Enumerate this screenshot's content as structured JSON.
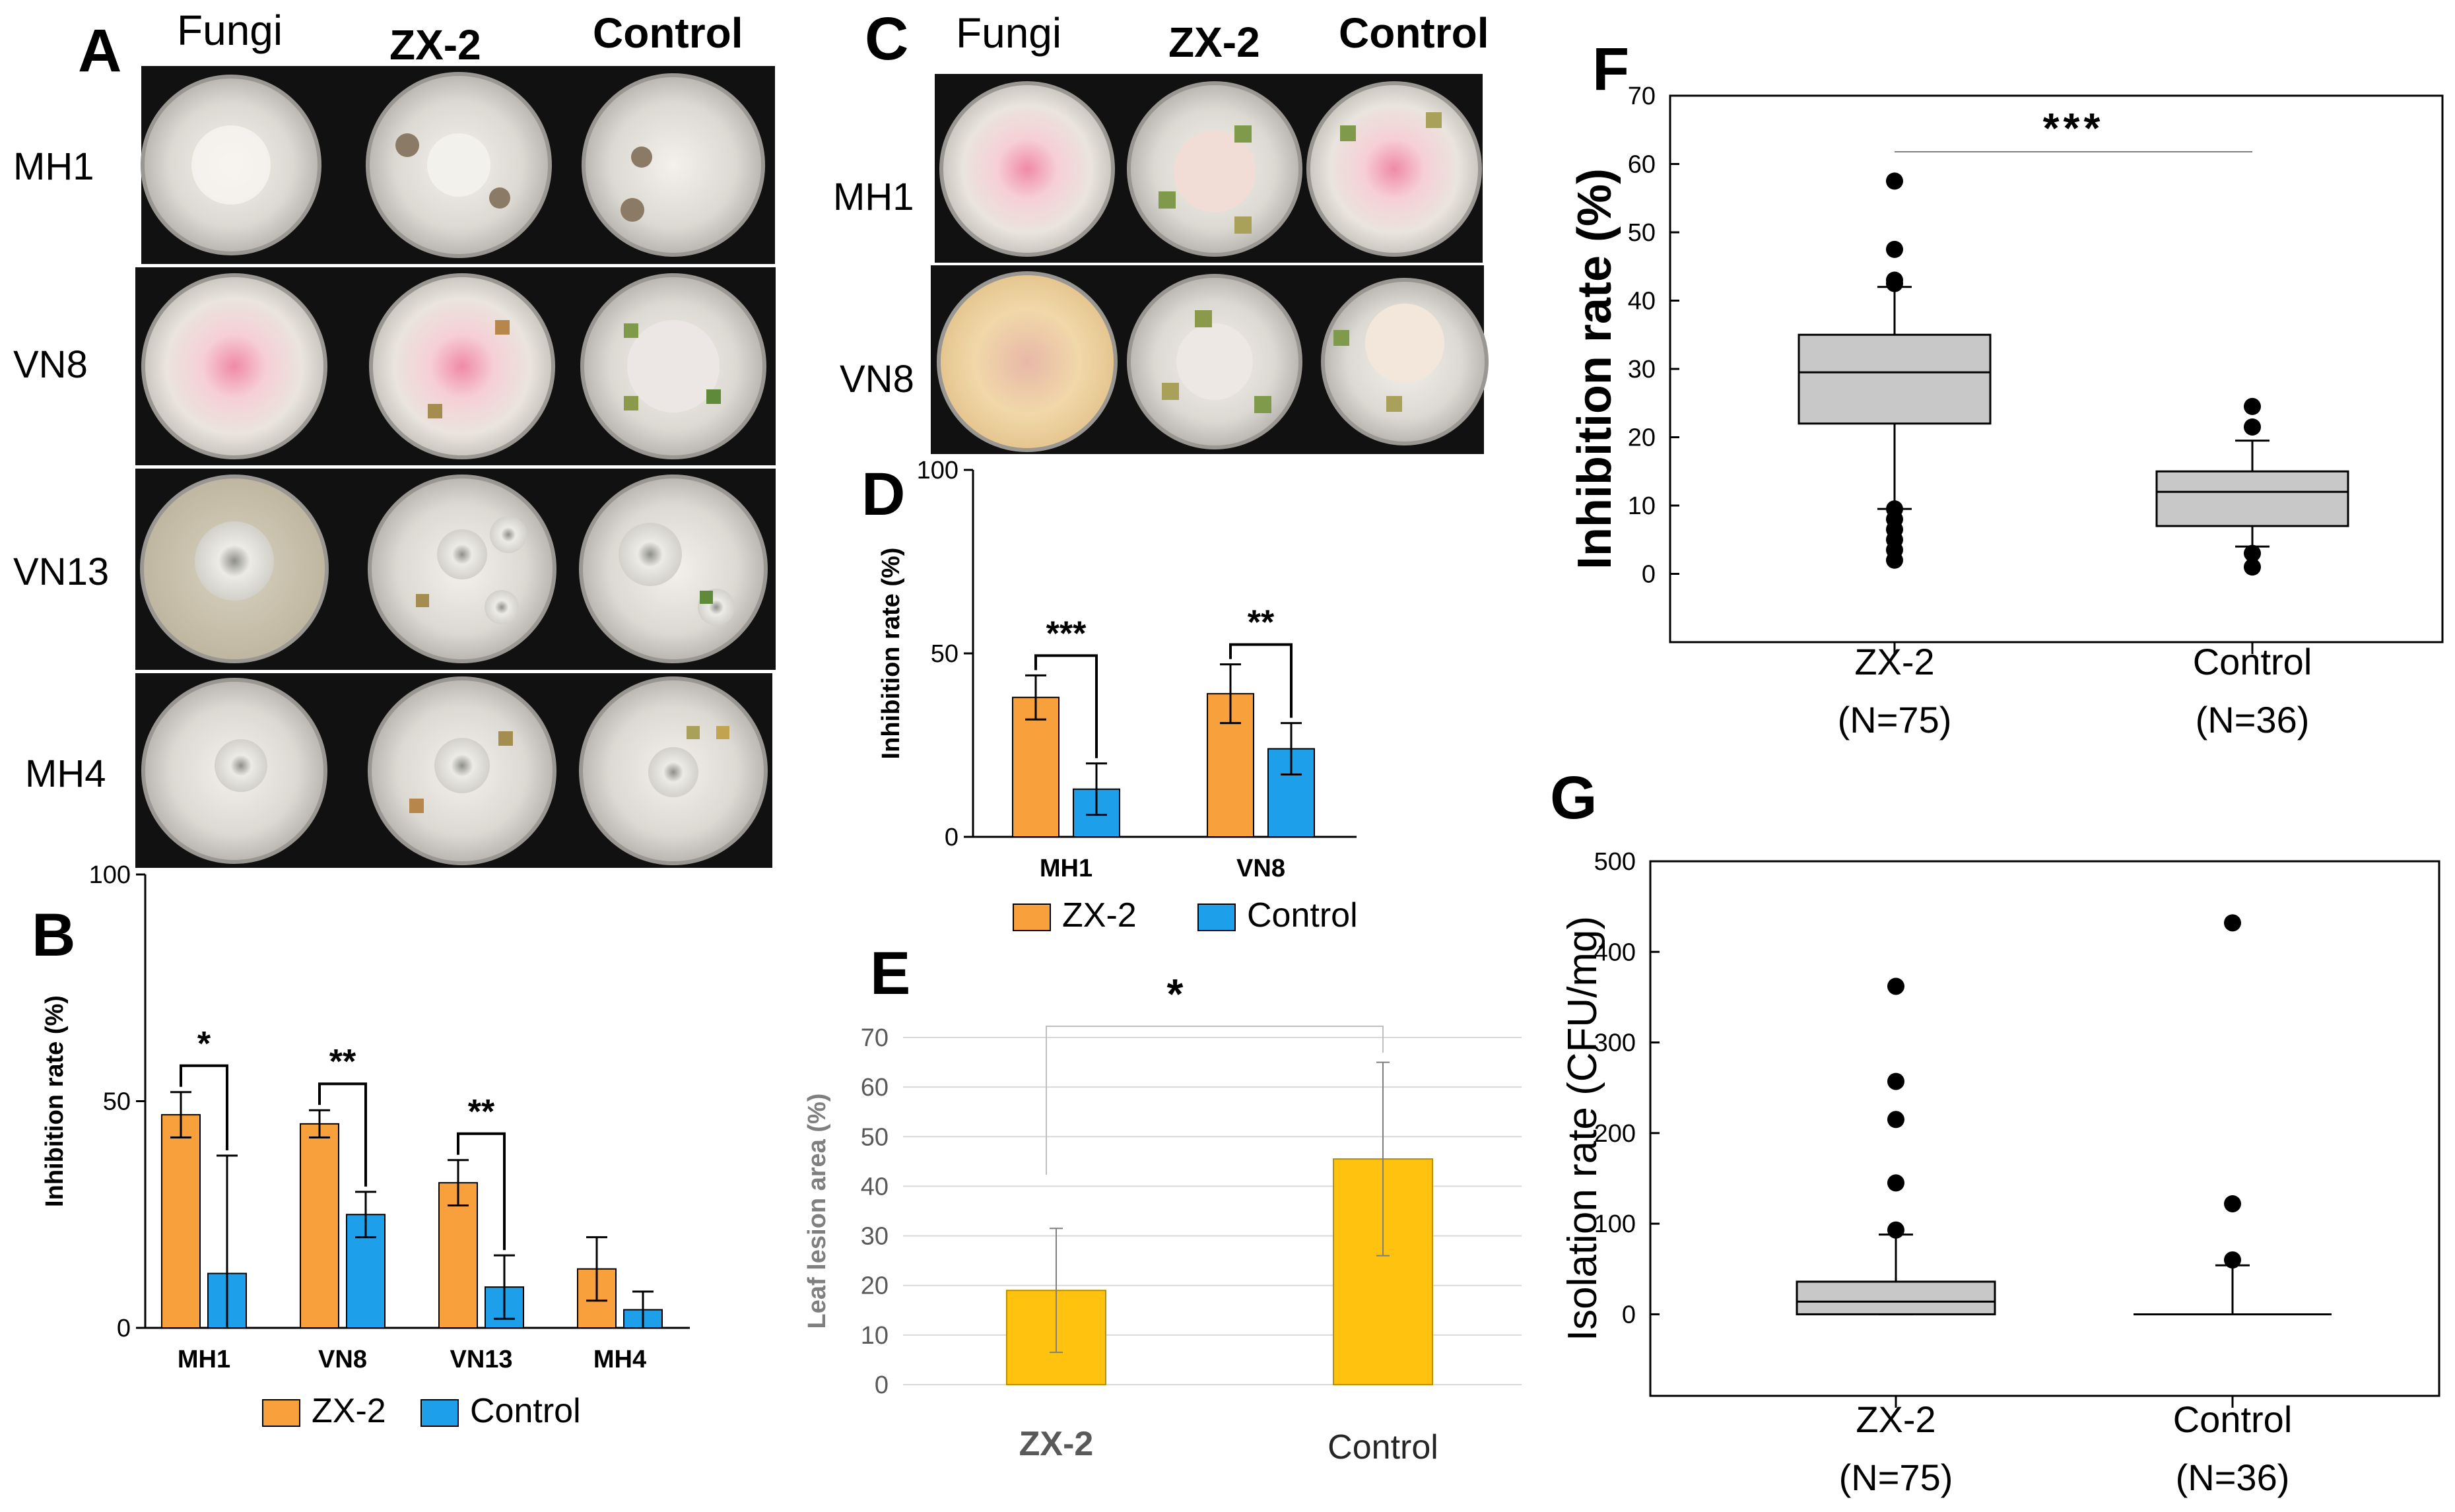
{
  "colors": {
    "zx2": "#F7A03C",
    "control": "#1E9FEA",
    "yellow": "#FFC20E",
    "box": "#C8C8C8",
    "plateDark": "#1a1a1a"
  },
  "panel_labels": {
    "A": "A",
    "B": "B",
    "C": "C",
    "D": "D",
    "E": "E",
    "F": "F",
    "G": "G"
  },
  "panelA": {
    "headers": {
      "fungi": "Fungi",
      "zx2": "ZX-2",
      "control": "Control"
    },
    "rows": [
      "MH1",
      "VN8",
      "VN13",
      "MH4"
    ]
  },
  "panelC": {
    "headers": {
      "fungi": "Fungi",
      "zx2": "ZX-2",
      "control": "Control"
    },
    "rows": [
      "MH1",
      "VN8"
    ]
  },
  "chart_data": [
    {
      "panel": "B",
      "type": "bar",
      "title": "",
      "ylabel": "Inhibition rate  (%)",
      "xlabel": "",
      "categories": [
        "MH1",
        "VN8",
        "VN13",
        "MH4"
      ],
      "ylim": [
        0,
        100
      ],
      "yticks": [
        "0",
        "50",
        "100"
      ],
      "series": [
        {
          "name": "ZX-2",
          "values": [
            47,
            45,
            32,
            13
          ],
          "errors": [
            5,
            3,
            5,
            7
          ]
        },
        {
          "name": "Control",
          "values": [
            12,
            25,
            9,
            4
          ],
          "errors": [
            26,
            5,
            7,
            4
          ]
        }
      ],
      "significance": [
        "*",
        "**",
        "**",
        ""
      ]
    },
    {
      "panel": "D",
      "type": "bar",
      "title": "",
      "ylabel": "Inhibition rate  (%)",
      "xlabel": "",
      "categories": [
        "MH1",
        "VN8"
      ],
      "ylim": [
        0,
        100
      ],
      "yticks": [
        "0",
        "50",
        "100"
      ],
      "series": [
        {
          "name": "ZX-2",
          "values": [
            38,
            39
          ],
          "errors": [
            6,
            8
          ]
        },
        {
          "name": "Control",
          "values": [
            13,
            24
          ],
          "errors": [
            7,
            7
          ]
        }
      ],
      "significance": [
        "***",
        "**"
      ]
    },
    {
      "panel": "E",
      "type": "bar",
      "title": "",
      "ylabel": "Leaf lesion area (%)",
      "xlabel": "",
      "categories": [
        "ZX-2",
        "Control"
      ],
      "ylim": [
        0,
        70
      ],
      "yticks": [
        "0",
        "10",
        "20",
        "30",
        "40",
        "50",
        "60",
        "70"
      ],
      "values": [
        19,
        45.5
      ],
      "errors": [
        12.5,
        19.5
      ],
      "significance": "*"
    },
    {
      "panel": "F",
      "type": "box",
      "title": "",
      "ylabel": "Inhibition rate (%)",
      "xlabel": "",
      "categories": [
        "ZX-2",
        "Control"
      ],
      "category_n": [
        "(N=75)",
        "(N=36)"
      ],
      "ylim": [
        -10,
        70
      ],
      "yticks": [
        "0",
        "10",
        "20",
        "30",
        "40",
        "50",
        "60",
        "70"
      ],
      "boxes": [
        {
          "q1": 22,
          "median": 29.5,
          "q3": 35,
          "whisker_low": 9.5,
          "whisker_high": 42,
          "outliers": [
            57.5,
            47.5,
            43,
            42.5,
            9.5,
            8,
            6.5,
            5,
            3.5,
            2
          ]
        },
        {
          "q1": 7,
          "median": 12,
          "q3": 15,
          "whisker_low": 4,
          "whisker_high": 19.5,
          "outliers": [
            24.5,
            21.5,
            3,
            1
          ]
        }
      ],
      "significance": "***"
    },
    {
      "panel": "G",
      "type": "box",
      "title": "",
      "ylabel": "Isolation rate (CFU/mg)",
      "xlabel": "",
      "categories": [
        "ZX-2",
        "Control"
      ],
      "category_n": [
        "(N=75)",
        "(N=36)"
      ],
      "ylim": [
        -90,
        500
      ],
      "yticks": [
        "0",
        "100",
        "200",
        "300",
        "400",
        "500"
      ],
      "boxes": [
        {
          "q1": 0,
          "median": 14,
          "q3": 36,
          "whisker_low": 0,
          "whisker_high": 88,
          "outliers": [
            362,
            257,
            215,
            145,
            93
          ]
        },
        {
          "q1": 0,
          "median": 0,
          "q3": 0,
          "whisker_low": 0,
          "whisker_high": 54,
          "outliers": [
            432,
            122,
            60
          ]
        }
      ]
    }
  ]
}
